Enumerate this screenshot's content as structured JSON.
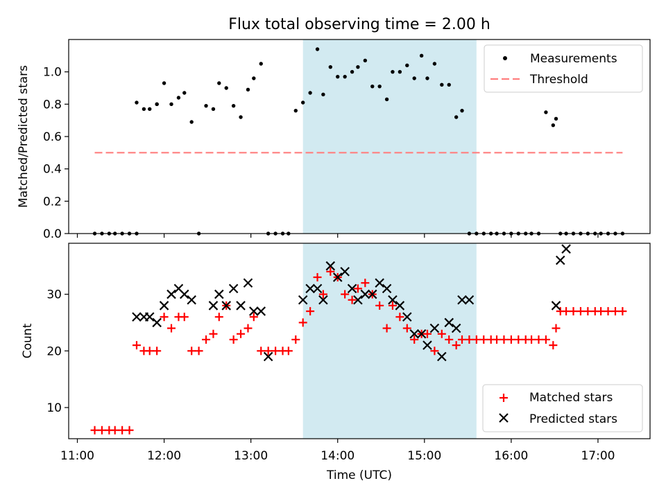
{
  "title": "Flux total observing time = 2.00 h",
  "colors": {
    "measurement": "#000000",
    "threshold": "#ff7f7f",
    "matched": "#ff0000",
    "predicted": "#000000",
    "highlight": "#add8e6"
  },
  "chart_data": [
    {
      "type": "scatter",
      "title": "Flux total observing time = 2.00 h",
      "xlabel": "",
      "ylabel": "Matched/Predicted stars",
      "xlim": [
        "10:54",
        "17:36"
      ],
      "ylim": [
        0,
        1.2
      ],
      "xticks": [
        "11:00",
        "12:00",
        "13:00",
        "14:00",
        "15:00",
        "16:00",
        "17:00"
      ],
      "yticks": [
        "0.0",
        "0.2",
        "0.4",
        "0.6",
        "0.8",
        "1.0"
      ],
      "highlight_span": [
        "13:36",
        "15:36"
      ],
      "legend_position": "upper right",
      "series": [
        {
          "name": "Measurements",
          "marker": "dot",
          "x": [
            "11:12",
            "11:17",
            "11:22",
            "11:26",
            "11:31",
            "11:36",
            "11:41",
            "11:41",
            "11:46",
            "11:50",
            "11:55",
            "11:55",
            "12:00",
            "12:05",
            "12:10",
            "12:14",
            "12:19",
            "12:24",
            "12:29",
            "12:34",
            "12:38",
            "12:43",
            "12:48",
            "12:53",
            "12:58",
            "13:02",
            "13:07",
            "13:12",
            "13:17",
            "13:22",
            "13:26",
            "13:31",
            "13:36",
            "13:41",
            "13:46",
            "13:50",
            "13:55",
            "14:00",
            "14:05",
            "14:10",
            "14:14",
            "14:19",
            "14:24",
            "14:29",
            "14:34",
            "14:38",
            "14:43",
            "14:48",
            "14:53",
            "14:58",
            "15:02",
            "15:07",
            "15:12",
            "15:17",
            "15:22",
            "15:26",
            "15:31",
            "15:36",
            "15:41",
            "15:46",
            "15:50",
            "15:55",
            "16:00",
            "16:05",
            "16:10",
            "16:14",
            "16:19",
            "16:24",
            "16:29",
            "16:31",
            "16:34",
            "16:38",
            "16:43",
            "16:48",
            "16:53",
            "16:58",
            "17:02",
            "17:07",
            "17:12",
            "17:17"
          ],
          "y": [
            0.0,
            0.0,
            0.0,
            0.0,
            0.0,
            0.0,
            0.0,
            0.81,
            0.77,
            0.77,
            0.8,
            0.8,
            0.93,
            0.8,
            0.84,
            0.87,
            0.69,
            0.0,
            0.79,
            0.77,
            0.93,
            0.9,
            0.79,
            0.72,
            0.89,
            0.96,
            1.05,
            0.0,
            0.0,
            0.0,
            0.0,
            0.76,
            0.81,
            0.87,
            1.14,
            0.86,
            1.03,
            0.97,
            0.97,
            1.0,
            1.03,
            1.07,
            0.91,
            0.91,
            0.83,
            1.0,
            1.0,
            1.04,
            0.96,
            1.1,
            0.96,
            1.05,
            0.92,
            0.92,
            0.72,
            0.76,
            0.0,
            0.0,
            0.0,
            0.0,
            0.0,
            0.0,
            0.0,
            0.0,
            0.0,
            0.0,
            0.0,
            0.75,
            0.67,
            0.71,
            0.0,
            0.0,
            0.0,
            0.0,
            0.0,
            0.0,
            0.0,
            0.0,
            0.0,
            0.0
          ]
        },
        {
          "name": "Threshold",
          "marker": "dashed-line",
          "x": [
            "11:12",
            "17:17"
          ],
          "y": [
            0.5,
            0.5
          ]
        }
      ]
    },
    {
      "type": "scatter",
      "title": "",
      "xlabel": "Time (UTC)",
      "ylabel": "Count",
      "xlim": [
        "10:54",
        "17:36"
      ],
      "ylim": [
        4.5,
        39
      ],
      "xticks": [
        "11:00",
        "12:00",
        "13:00",
        "14:00",
        "15:00",
        "16:00",
        "17:00"
      ],
      "yticks": [
        "10",
        "20",
        "30"
      ],
      "highlight_span": [
        "13:36",
        "15:36"
      ],
      "legend_position": "lower right",
      "series": [
        {
          "name": "Matched stars",
          "marker": "plus",
          "x": [
            "11:12",
            "11:17",
            "11:22",
            "11:26",
            "11:31",
            "11:36",
            "11:41",
            "11:46",
            "11:50",
            "11:55",
            "12:00",
            "12:05",
            "12:10",
            "12:14",
            "12:19",
            "12:24",
            "12:29",
            "12:34",
            "12:38",
            "12:43",
            "12:48",
            "12:53",
            "12:58",
            "13:02",
            "13:07",
            "13:12",
            "13:17",
            "13:22",
            "13:26",
            "13:31",
            "13:36",
            "13:41",
            "13:46",
            "13:50",
            "13:55",
            "14:00",
            "14:05",
            "14:10",
            "14:14",
            "14:19",
            "14:24",
            "14:29",
            "14:34",
            "14:38",
            "14:43",
            "14:48",
            "14:53",
            "14:58",
            "15:02",
            "15:07",
            "15:12",
            "15:17",
            "15:22",
            "15:26",
            "15:31",
            "15:36",
            "15:41",
            "15:46",
            "15:50",
            "15:55",
            "16:00",
            "16:05",
            "16:10",
            "16:14",
            "16:19",
            "16:24",
            "16:29",
            "16:31",
            "16:34",
            "16:38",
            "16:43",
            "16:48",
            "16:53",
            "16:58",
            "17:02",
            "17:07",
            "17:12",
            "17:17"
          ],
          "y": [
            6,
            6,
            6,
            6,
            6,
            6,
            21,
            20,
            20,
            20,
            26,
            24,
            26,
            26,
            20,
            20,
            22,
            23,
            26,
            28,
            22,
            23,
            24,
            26,
            20,
            20,
            20,
            20,
            20,
            22,
            25,
            27,
            33,
            30,
            34,
            33,
            30,
            29,
            31,
            32,
            30,
            28,
            24,
            28,
            26,
            24,
            22,
            23,
            23,
            20,
            23,
            22,
            21,
            22,
            22,
            22,
            22,
            22,
            22,
            22,
            22,
            22,
            22,
            22,
            22,
            22,
            21,
            24,
            27,
            27,
            27,
            27,
            27,
            27,
            27,
            27,
            27,
            27
          ]
        },
        {
          "name": "Predicted stars",
          "marker": "x",
          "x": [
            "11:41",
            "11:46",
            "11:50",
            "11:55",
            "12:00",
            "12:05",
            "12:10",
            "12:14",
            "12:19",
            "12:34",
            "12:38",
            "12:43",
            "12:48",
            "12:53",
            "12:58",
            "13:02",
            "13:07",
            "13:12",
            "13:36",
            "13:41",
            "13:46",
            "13:50",
            "13:55",
            "14:00",
            "14:05",
            "14:10",
            "14:14",
            "14:19",
            "14:24",
            "14:29",
            "14:34",
            "14:38",
            "14:43",
            "14:48",
            "14:53",
            "14:58",
            "15:02",
            "15:07",
            "15:12",
            "15:17",
            "15:22",
            "15:26",
            "15:31",
            "16:31",
            "16:34",
            "16:38"
          ],
          "y": [
            26,
            26,
            26,
            25,
            28,
            30,
            31,
            30,
            29,
            28,
            30,
            28,
            31,
            28,
            32,
            27,
            27,
            19,
            29,
            31,
            31,
            29,
            35,
            33,
            34,
            31,
            29,
            30,
            30,
            32,
            31,
            29,
            28,
            26,
            23,
            23,
            21,
            24,
            19,
            25,
            24,
            29,
            29,
            28,
            36,
            38
          ]
        }
      ]
    }
  ]
}
